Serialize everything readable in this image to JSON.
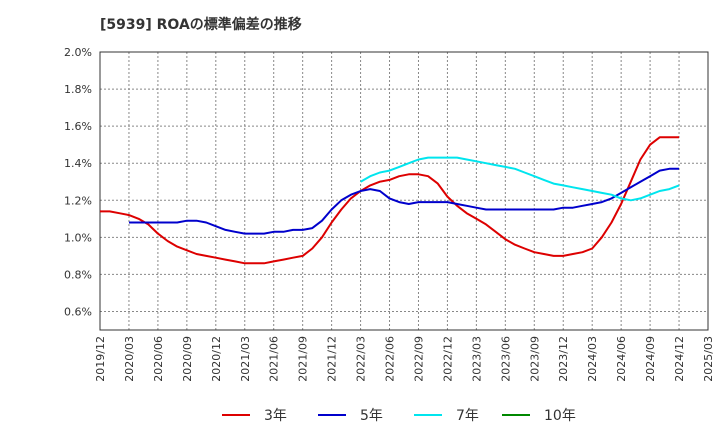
{
  "chart_data": {
    "type": "line",
    "title": "[5939]  ROAの標準偏差の推移",
    "xlabel": "",
    "ylabel": "",
    "x_ticks": [
      "2019/12",
      "2020/03",
      "2020/06",
      "2020/09",
      "2020/12",
      "2021/03",
      "2021/06",
      "2021/09",
      "2021/12",
      "2022/03",
      "2022/06",
      "2022/09",
      "2022/12",
      "2023/03",
      "2023/06",
      "2023/09",
      "2023/12",
      "2024/03",
      "2024/06",
      "2024/09",
      "2024/12",
      "2025/03"
    ],
    "y_ticks": [
      "0.6%",
      "0.8%",
      "1.0%",
      "1.2%",
      "1.4%",
      "1.6%",
      "1.8%",
      "2.0%"
    ],
    "ylim": [
      0.5,
      2.0
    ],
    "grid": true,
    "legend_position": "bottom",
    "series": [
      {
        "name": "3年",
        "color": "#dd0000",
        "x": [
          "2019/12",
          "2020/01",
          "2020/02",
          "2020/03",
          "2020/04",
          "2020/05",
          "2020/06",
          "2020/07",
          "2020/08",
          "2020/09",
          "2020/10",
          "2020/11",
          "2020/12",
          "2021/01",
          "2021/02",
          "2021/03",
          "2021/04",
          "2021/05",
          "2021/06",
          "2021/07",
          "2021/08",
          "2021/09",
          "2021/10",
          "2021/11",
          "2021/12",
          "2022/01",
          "2022/02",
          "2022/03",
          "2022/04",
          "2022/05",
          "2022/06",
          "2022/07",
          "2022/08",
          "2022/09",
          "2022/10",
          "2022/11",
          "2022/12",
          "2023/01",
          "2023/02",
          "2023/03",
          "2023/04",
          "2023/05",
          "2023/06",
          "2023/07",
          "2023/08",
          "2023/09",
          "2023/10",
          "2023/11",
          "2023/12",
          "2024/01",
          "2024/02",
          "2024/03",
          "2024/04",
          "2024/05",
          "2024/06",
          "2024/07",
          "2024/08",
          "2024/09",
          "2024/10",
          "2024/11",
          "2024/12"
        ],
        "values": [
          1.14,
          1.14,
          1.13,
          1.12,
          1.1,
          1.07,
          1.02,
          0.98,
          0.95,
          0.93,
          0.91,
          0.9,
          0.89,
          0.88,
          0.87,
          0.86,
          0.86,
          0.86,
          0.87,
          0.88,
          0.89,
          0.9,
          0.94,
          1.0,
          1.08,
          1.15,
          1.21,
          1.25,
          1.28,
          1.3,
          1.31,
          1.33,
          1.34,
          1.34,
          1.33,
          1.29,
          1.22,
          1.17,
          1.13,
          1.1,
          1.07,
          1.03,
          0.99,
          0.96,
          0.94,
          0.92,
          0.91,
          0.9,
          0.9,
          0.91,
          0.92,
          0.94,
          1.0,
          1.08,
          1.18,
          1.3,
          1.42,
          1.5,
          1.54,
          1.54,
          1.54
        ]
      },
      {
        "name": "5年",
        "color": "#0000cc",
        "x": [
          "2020/03",
          "2020/04",
          "2020/05",
          "2020/06",
          "2020/07",
          "2020/08",
          "2020/09",
          "2020/10",
          "2020/11",
          "2020/12",
          "2021/01",
          "2021/02",
          "2021/03",
          "2021/04",
          "2021/05",
          "2021/06",
          "2021/07",
          "2021/08",
          "2021/09",
          "2021/10",
          "2021/11",
          "2021/12",
          "2022/01",
          "2022/02",
          "2022/03",
          "2022/04",
          "2022/05",
          "2022/06",
          "2022/07",
          "2022/08",
          "2022/09",
          "2022/10",
          "2022/11",
          "2022/12",
          "2023/01",
          "2023/02",
          "2023/03",
          "2023/04",
          "2023/05",
          "2023/06",
          "2023/07",
          "2023/08",
          "2023/09",
          "2023/10",
          "2023/11",
          "2023/12",
          "2024/01",
          "2024/02",
          "2024/03",
          "2024/04",
          "2024/05",
          "2024/06",
          "2024/07",
          "2024/08",
          "2024/09",
          "2024/10",
          "2024/11",
          "2024/12"
        ],
        "values": [
          1.08,
          1.08,
          1.08,
          1.08,
          1.08,
          1.08,
          1.09,
          1.09,
          1.08,
          1.06,
          1.04,
          1.03,
          1.02,
          1.02,
          1.02,
          1.03,
          1.03,
          1.04,
          1.04,
          1.05,
          1.09,
          1.15,
          1.2,
          1.23,
          1.25,
          1.26,
          1.25,
          1.21,
          1.19,
          1.18,
          1.19,
          1.19,
          1.19,
          1.19,
          1.18,
          1.17,
          1.16,
          1.15,
          1.15,
          1.15,
          1.15,
          1.15,
          1.15,
          1.15,
          1.15,
          1.16,
          1.16,
          1.17,
          1.18,
          1.19,
          1.21,
          1.24,
          1.27,
          1.3,
          1.33,
          1.36,
          1.37,
          1.37
        ]
      },
      {
        "name": "7年",
        "color": "#00e5ee",
        "x": [
          "2022/03",
          "2022/04",
          "2022/05",
          "2022/06",
          "2022/07",
          "2022/08",
          "2022/09",
          "2022/10",
          "2022/11",
          "2022/12",
          "2023/01",
          "2023/02",
          "2023/03",
          "2023/04",
          "2023/05",
          "2023/06",
          "2023/07",
          "2023/08",
          "2023/09",
          "2023/10",
          "2023/11",
          "2023/12",
          "2024/01",
          "2024/02",
          "2024/03",
          "2024/04",
          "2024/05",
          "2024/06",
          "2024/07",
          "2024/08",
          "2024/09",
          "2024/10",
          "2024/11",
          "2024/12"
        ],
        "values": [
          1.3,
          1.33,
          1.35,
          1.36,
          1.38,
          1.4,
          1.42,
          1.43,
          1.43,
          1.43,
          1.43,
          1.42,
          1.41,
          1.4,
          1.39,
          1.38,
          1.37,
          1.35,
          1.33,
          1.31,
          1.29,
          1.28,
          1.27,
          1.26,
          1.25,
          1.24,
          1.23,
          1.21,
          1.2,
          1.21,
          1.23,
          1.25,
          1.26,
          1.28
        ]
      },
      {
        "name": "10年",
        "color": "#008800",
        "x": [],
        "values": []
      }
    ]
  }
}
